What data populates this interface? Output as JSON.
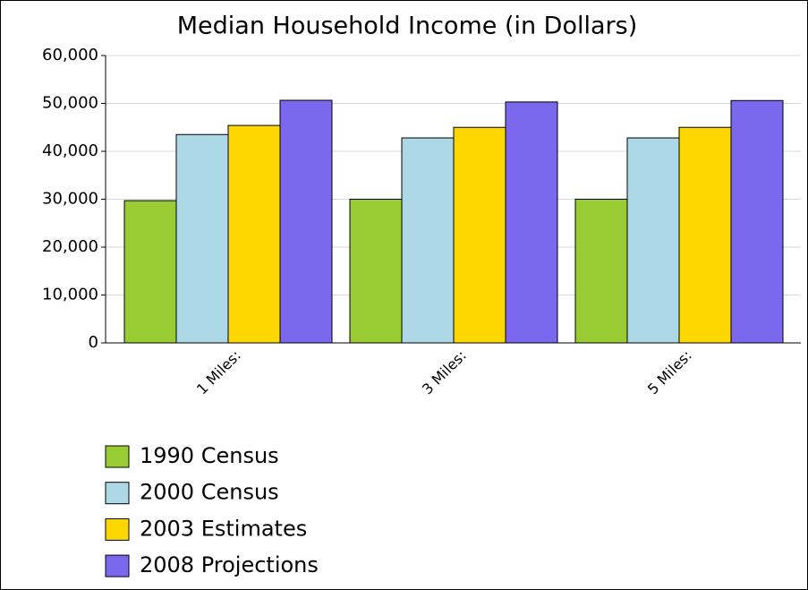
{
  "chart_data": {
    "type": "bar",
    "title": "Median Household Income (in Dollars)",
    "categories": [
      "1 Miles:",
      "3 Miles:",
      "5 Miles:"
    ],
    "series": [
      {
        "name": "1990 Census",
        "color": "#99cc33",
        "values": [
          29700,
          30000,
          30000
        ]
      },
      {
        "name": "2000 Census",
        "color": "#add8e6",
        "values": [
          43500,
          42800,
          42800
        ]
      },
      {
        "name": "2003 Estimates",
        "color": "#ffd700",
        "values": [
          45400,
          45000,
          45000
        ]
      },
      {
        "name": "2008 Projections",
        "color": "#7b68ee",
        "values": [
          50650,
          50300,
          50600
        ]
      }
    ],
    "ylim": [
      0,
      60000
    ],
    "yticks": [
      0,
      {
        "value": 10000,
        "label": "10,000"
      },
      {
        "value": 20000,
        "label": "20,000"
      },
      {
        "value": 30000,
        "label": "30,000"
      },
      {
        "value": 40000,
        "label": "40,000"
      },
      {
        "value": 50000,
        "label": "50,000"
      },
      {
        "value": 60000,
        "label": "60,000"
      }
    ],
    "grid": true
  }
}
